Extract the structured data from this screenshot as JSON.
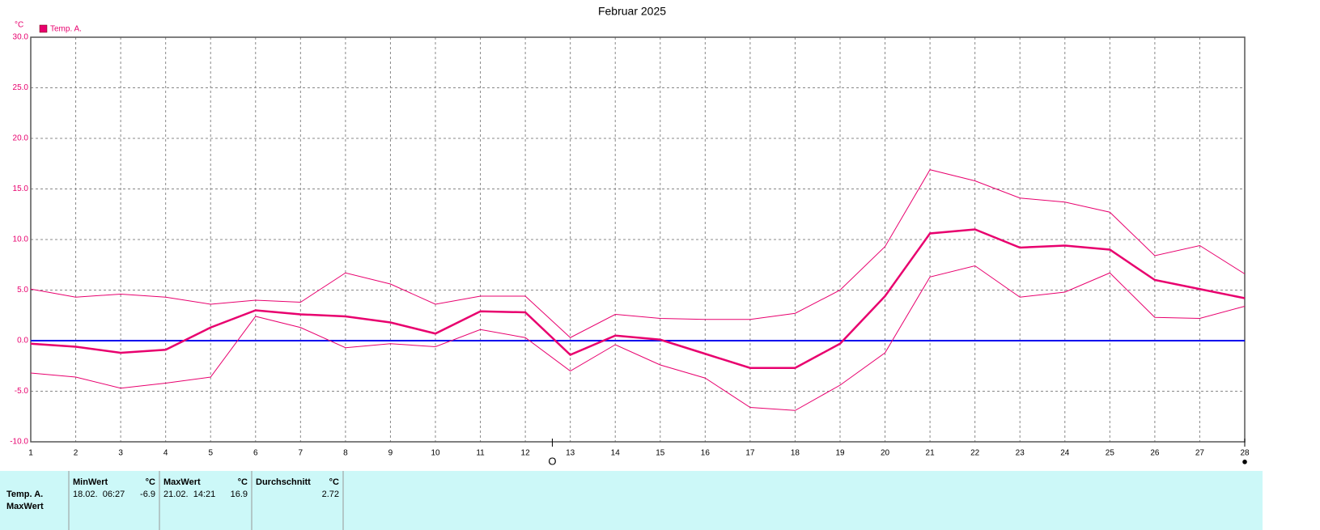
{
  "chart_data": {
    "type": "line",
    "title": "Februar 2025",
    "y_unit": "°C",
    "x": [
      1,
      2,
      3,
      4,
      5,
      6,
      7,
      8,
      9,
      10,
      11,
      12,
      13,
      14,
      15,
      16,
      17,
      18,
      19,
      20,
      21,
      22,
      23,
      24,
      25,
      26,
      27,
      28
    ],
    "series": [
      {
        "name": "Temp. A.",
        "color": "#e8006e",
        "width": 2.5,
        "values": [
          -0.3,
          -0.6,
          -1.2,
          -0.9,
          1.3,
          3.0,
          2.6,
          2.4,
          1.8,
          0.7,
          2.9,
          2.8,
          -1.4,
          0.5,
          0.1,
          -1.3,
          -2.7,
          -2.7,
          -0.3,
          4.4,
          10.6,
          11.0,
          9.2,
          9.4,
          9.0,
          6.0,
          5.1,
          4.2
        ]
      },
      {
        "color": "#e8006e",
        "width": 1,
        "values": [
          5.1,
          4.3,
          4.6,
          4.3,
          3.6,
          4.0,
          3.8,
          6.7,
          5.6,
          3.6,
          4.4,
          4.4,
          0.3,
          2.6,
          2.2,
          2.1,
          2.1,
          2.7,
          5.0,
          9.3,
          16.9,
          15.8,
          14.1,
          13.7,
          12.7,
          8.4,
          9.4,
          6.6
        ]
      },
      {
        "color": "#e8006e",
        "width": 1,
        "values": [
          -3.2,
          -3.6,
          -4.7,
          -4.2,
          -3.6,
          2.4,
          1.3,
          -0.7,
          -0.3,
          -0.6,
          1.1,
          0.3,
          -3.0,
          -0.4,
          -2.4,
          -3.7,
          -6.6,
          -6.9,
          -4.4,
          -1.2,
          6.3,
          7.4,
          4.3,
          4.8,
          6.7,
          2.3,
          2.2,
          3.4
        ]
      }
    ],
    "xlim": [
      1,
      28
    ],
    "xticks": [
      1,
      2,
      3,
      4,
      5,
      6,
      7,
      8,
      9,
      10,
      11,
      12,
      13,
      14,
      15,
      16,
      17,
      18,
      19,
      20,
      21,
      22,
      23,
      24,
      25,
      26,
      27,
      28
    ],
    "ylim": [
      -10,
      30
    ],
    "yticks": [
      {
        "value": -10,
        "label": "-10.0"
      },
      {
        "value": -5,
        "label": "-5.0"
      },
      {
        "value": 0,
        "label": "0.0"
      },
      {
        "value": 5,
        "label": "5.0"
      },
      {
        "value": 10,
        "label": "10.0"
      },
      {
        "value": 15,
        "label": "15.0"
      },
      {
        "value": 20,
        "label": "20.0"
      },
      {
        "value": 25,
        "label": "25.0"
      },
      {
        "value": 30,
        "label": "30.0"
      }
    ],
    "grid": true,
    "legend": "top-left",
    "reference_line": {
      "value": 0,
      "color": "#0000ee"
    },
    "moon_phases": [
      {
        "x": 12.6,
        "label": "O"
      },
      {
        "x": 28,
        "label": "●"
      }
    ]
  },
  "stats_table": {
    "columns": [
      {
        "name": "MinWert",
        "unit": "°C"
      },
      {
        "name": "MaxWert",
        "unit": "°C"
      },
      {
        "name": "Durchschnitt",
        "unit": "°C"
      }
    ],
    "rows": [
      {
        "label": "Temp. A.",
        "cells": [
          {
            "time": "18.02.  06:27",
            "value": -6.9
          },
          {
            "time": "21.02.  14:21",
            "value": 16.9
          },
          {
            "value": 2.72
          }
        ]
      },
      {
        "label": "MaxWert"
      }
    ]
  }
}
